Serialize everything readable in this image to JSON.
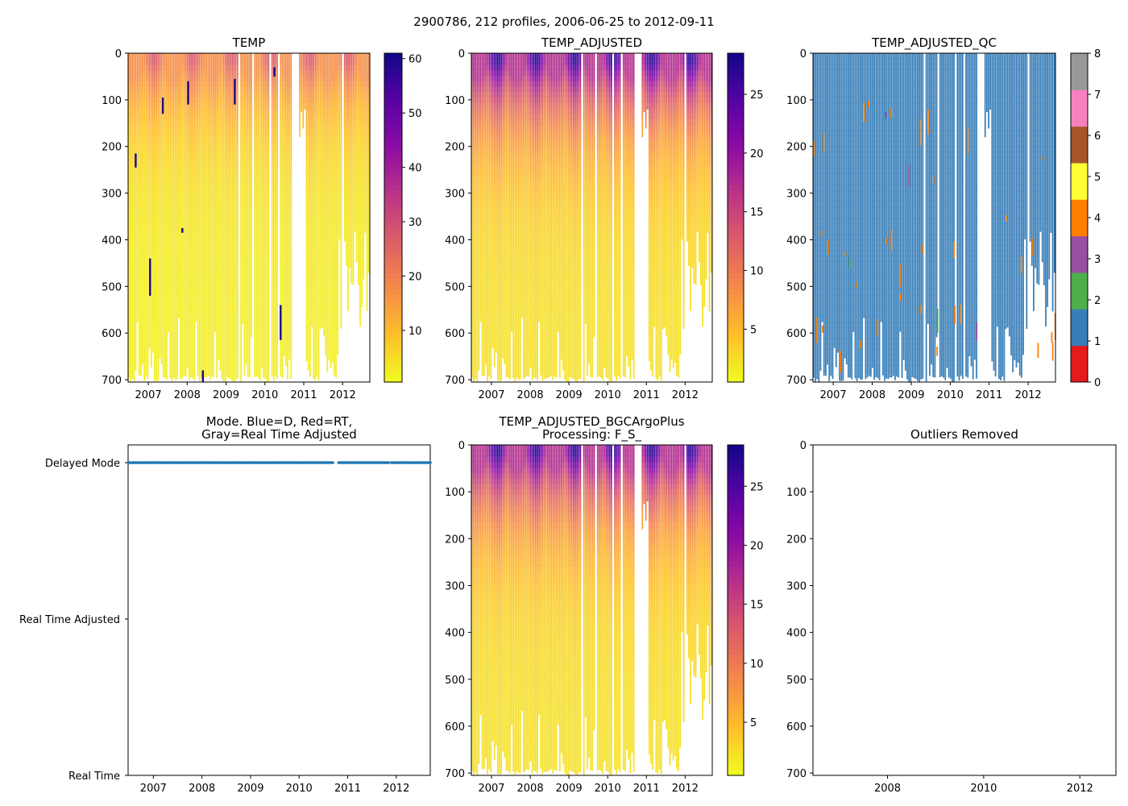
{
  "suptitle": "2900786, 212 profiles, 2006-06-25 to 2012-09-11",
  "chart_data": [
    {
      "id": "temp",
      "type": "heatmap",
      "title": "TEMP",
      "ylim": [
        705,
        0
      ],
      "yticks": [
        0,
        100,
        200,
        300,
        400,
        500,
        600,
        700
      ],
      "xticks": [
        "2007",
        "2008",
        "2009",
        "2010",
        "2011",
        "2012"
      ],
      "colorbar": {
        "cmap": "plasma_r",
        "range": [
          0.5,
          61
        ],
        "ticks": [
          10,
          20,
          30,
          40,
          50,
          60
        ]
      }
    },
    {
      "id": "temp_adjusted",
      "type": "heatmap",
      "title": "TEMP_ADJUSTED",
      "ylim": [
        705,
        0
      ],
      "yticks": [
        0,
        100,
        200,
        300,
        400,
        500,
        600,
        700
      ],
      "xticks": [
        "2007",
        "2008",
        "2009",
        "2010",
        "2011",
        "2012"
      ],
      "colorbar": {
        "cmap": "plasma_r",
        "range": [
          0.5,
          28.5
        ],
        "ticks": [
          5,
          10,
          15,
          20,
          25
        ]
      }
    },
    {
      "id": "temp_adjusted_qc",
      "type": "heatmap",
      "title": "TEMP_ADJUSTED_QC",
      "ylim": [
        705,
        0
      ],
      "yticks": [
        0,
        100,
        200,
        300,
        400,
        500,
        600,
        700
      ],
      "xticks": [
        "2007",
        "2008",
        "2009",
        "2010",
        "2011",
        "2012"
      ],
      "colorbar": {
        "type": "discrete",
        "ticks": [
          0,
          1,
          2,
          3,
          4,
          5,
          6,
          7,
          8
        ],
        "colors": [
          "#e41a1c",
          "#377eb8",
          "#4daf4a",
          "#984ea3",
          "#ff7f00",
          "#ffff33",
          "#a65628",
          "#f781bf",
          "#999999"
        ]
      },
      "dominant_flag": 1
    },
    {
      "id": "mode",
      "type": "scatter",
      "title": "Mode. Blue=D, Red=RT,",
      "title2": "Gray=Real Time Adjusted",
      "yticks": [
        "Delayed Mode",
        "Real Time Adjusted",
        "Real Time"
      ],
      "xticks": [
        "2007",
        "2008",
        "2009",
        "2010",
        "2011",
        "2012"
      ],
      "series": [
        {
          "name": "Delayed Mode",
          "color": "#1f77b4",
          "all_profiles_mode": "Delayed Mode"
        }
      ]
    },
    {
      "id": "bgc",
      "type": "heatmap",
      "title": "TEMP_ADJUSTED_BGCArgoPlus",
      "title2": "Processing: F_S_",
      "ylim": [
        705,
        0
      ],
      "yticks": [
        0,
        100,
        200,
        300,
        400,
        500,
        600,
        700
      ],
      "xticks": [
        "2007",
        "2008",
        "2009",
        "2010",
        "2011",
        "2012"
      ],
      "colorbar": {
        "cmap": "plasma_r",
        "range": [
          0.5,
          28.5
        ],
        "ticks": [
          5,
          10,
          15,
          20,
          25
        ]
      }
    },
    {
      "id": "outliers",
      "type": "scatter",
      "title": "Outliers Removed",
      "ylim": [
        705,
        0
      ],
      "yticks": [
        0,
        100,
        200,
        300,
        400,
        500,
        600,
        700
      ],
      "xticks": [
        "2008",
        "2010",
        "2012"
      ],
      "series": []
    }
  ]
}
